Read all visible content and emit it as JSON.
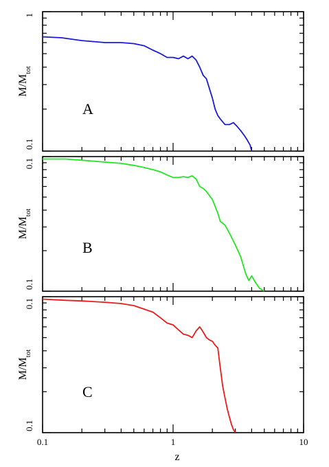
{
  "figure": {
    "xlabel": "z",
    "ylabel_main": "M/M",
    "ylabel_sub": "tot",
    "x_ticks": [
      {
        "value": 0.1,
        "label": "0.1"
      },
      {
        "value": 1,
        "label": "1"
      },
      {
        "value": 10,
        "label": "10"
      }
    ]
  },
  "chart_data": [
    {
      "type": "line",
      "panel_label": "A",
      "x_scale": "log",
      "y_scale": "log",
      "xlim": [
        0.1,
        10
      ],
      "ylim": [
        0.1,
        1
      ],
      "y_ticks": [
        {
          "value": 1,
          "label": "1"
        },
        {
          "value": 0.1,
          "label": "0.1"
        }
      ],
      "color": "#1a1ad8",
      "series": [
        {
          "x": [
            0.1,
            0.14,
            0.2,
            0.3,
            0.4,
            0.5,
            0.6,
            0.7,
            0.8,
            0.9,
            1.0,
            1.1,
            1.2,
            1.3,
            1.4,
            1.5,
            1.6,
            1.7,
            1.8,
            1.9,
            2.0,
            2.1,
            2.2,
            2.3,
            2.5,
            2.7,
            2.9,
            3.1,
            3.3,
            3.5,
            3.7,
            3.9,
            4.0
          ],
          "y": [
            0.66,
            0.65,
            0.62,
            0.6,
            0.6,
            0.59,
            0.57,
            0.53,
            0.5,
            0.47,
            0.47,
            0.46,
            0.48,
            0.46,
            0.48,
            0.45,
            0.4,
            0.35,
            0.33,
            0.28,
            0.24,
            0.2,
            0.18,
            0.17,
            0.155,
            0.155,
            0.16,
            0.15,
            0.14,
            0.13,
            0.12,
            0.11,
            0.1
          ]
        }
      ]
    },
    {
      "type": "line",
      "panel_label": "B",
      "x_scale": "log",
      "y_scale": "log",
      "xlim": [
        0.1,
        10
      ],
      "ylim": [
        0.1,
        1
      ],
      "y_ticks": [
        {
          "value": 0.1,
          "label": "0.1"
        },
        {
          "value": 0.1,
          "label": "0.1"
        }
      ],
      "color": "#22e622",
      "series": [
        {
          "x": [
            0.1,
            0.15,
            0.2,
            0.3,
            0.4,
            0.5,
            0.6,
            0.7,
            0.8,
            0.9,
            1.0,
            1.1,
            1.2,
            1.3,
            1.4,
            1.5,
            1.6,
            1.7,
            1.8,
            2.0,
            2.2,
            2.3,
            2.5,
            2.7,
            3.0,
            3.3,
            3.6,
            3.8,
            4.0,
            4.3,
            4.6,
            5.0
          ],
          "y": [
            0.96,
            0.96,
            0.94,
            0.91,
            0.89,
            0.86,
            0.83,
            0.8,
            0.77,
            0.73,
            0.7,
            0.7,
            0.71,
            0.7,
            0.72,
            0.68,
            0.6,
            0.58,
            0.55,
            0.48,
            0.38,
            0.33,
            0.31,
            0.27,
            0.22,
            0.18,
            0.135,
            0.12,
            0.13,
            0.115,
            0.105,
            0.1
          ]
        }
      ]
    },
    {
      "type": "line",
      "panel_label": "C",
      "x_scale": "log",
      "y_scale": "log",
      "xlim": [
        0.1,
        10
      ],
      "ylim": [
        0.1,
        1
      ],
      "y_ticks": [
        {
          "value": 0.1,
          "label": "0.1"
        },
        {
          "value": 0.1,
          "label": "0.1"
        }
      ],
      "color": "#ee1a1a",
      "series": [
        {
          "x": [
            0.1,
            0.15,
            0.2,
            0.3,
            0.4,
            0.5,
            0.6,
            0.7,
            0.8,
            0.9,
            1.0,
            1.1,
            1.2,
            1.3,
            1.4,
            1.5,
            1.6,
            1.7,
            1.8,
            1.9,
            2.0,
            2.1,
            2.2,
            2.3,
            2.4,
            2.5,
            2.6,
            2.7,
            2.8,
            2.9,
            3.0
          ],
          "y": [
            0.96,
            0.94,
            0.93,
            0.91,
            0.89,
            0.86,
            0.81,
            0.77,
            0.7,
            0.64,
            0.62,
            0.57,
            0.53,
            0.52,
            0.5,
            0.56,
            0.6,
            0.55,
            0.5,
            0.48,
            0.47,
            0.44,
            0.42,
            0.3,
            0.22,
            0.18,
            0.15,
            0.13,
            0.115,
            0.105,
            0.1
          ]
        }
      ]
    }
  ]
}
